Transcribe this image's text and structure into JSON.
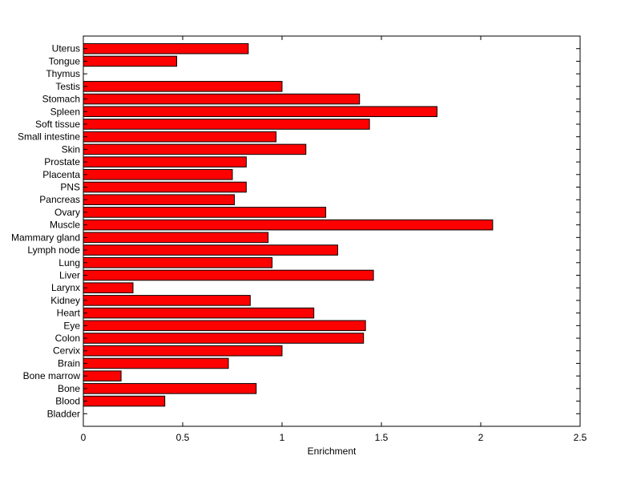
{
  "chart_data": {
    "type": "bar",
    "orientation": "horizontal",
    "xlabel": "Enrichment",
    "xlim": [
      0,
      2.5
    ],
    "xticks": [
      0,
      0.5,
      1,
      1.5,
      2,
      2.5
    ],
    "xtick_labels": [
      "0",
      "0.5",
      "1",
      "1.5",
      "2",
      "2.5"
    ],
    "grid": false,
    "bar_color": "#ff0000",
    "categories": [
      "Uterus",
      "Tongue",
      "Thymus",
      "Testis",
      "Stomach",
      "Spleen",
      "Soft tissue",
      "Small intestine",
      "Skin",
      "Prostate",
      "Placenta",
      "PNS",
      "Pancreas",
      "Ovary",
      "Muscle",
      "Mammary gland",
      "Lymph node",
      "Lung",
      "Liver",
      "Larynx",
      "Kidney",
      "Heart",
      "Eye",
      "Colon",
      "Cervix",
      "Brain",
      "Bone marrow",
      "Bone",
      "Blood",
      "Bladder"
    ],
    "values": [
      0.83,
      0.47,
      0.0,
      1.0,
      1.39,
      1.78,
      1.44,
      0.97,
      1.12,
      0.82,
      0.75,
      0.82,
      0.76,
      1.22,
      2.06,
      0.93,
      1.28,
      0.95,
      1.46,
      0.25,
      0.84,
      1.16,
      1.42,
      1.41,
      1.0,
      0.73,
      0.19,
      0.87,
      0.41,
      0.0
    ]
  }
}
